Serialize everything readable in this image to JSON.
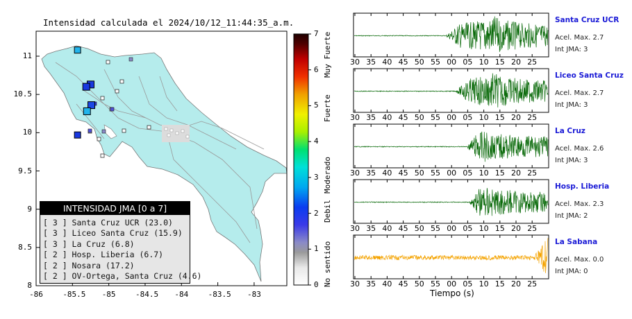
{
  "title": "Intensidad calculada el 2024/10/12_11:44:35_a.m.",
  "map": {
    "y_ticks": [
      "8",
      "8.5",
      "9",
      "9.5",
      "10",
      "10.5",
      "11"
    ],
    "x_ticks": [
      "-86",
      "-85.5",
      "-85",
      "-84.5",
      "-84",
      "-83.5",
      "-83"
    ],
    "land_color": "#b5ecec",
    "markers": [
      {
        "lon": -85.43,
        "lat": 11.08,
        "color": "#22b4ec",
        "size": 9
      },
      {
        "lon": -85.25,
        "lat": 10.63,
        "color": "#1838e0",
        "size": 10
      },
      {
        "lon": -85.31,
        "lat": 10.6,
        "color": "#1838e0",
        "size": 10
      },
      {
        "lon": -85.24,
        "lat": 10.36,
        "color": "#1c48e4",
        "size": 10
      },
      {
        "lon": -85.3,
        "lat": 10.28,
        "color": "#22b4ec",
        "size": 10
      },
      {
        "lon": -85.43,
        "lat": 9.97,
        "color": "#1838e0",
        "size": 9
      }
    ]
  },
  "legend": {
    "heading": "INTENSIDAD JMA [0 a 7]",
    "rows": [
      "[ 3 ] Santa Cruz UCR (23.0)",
      "[ 3 ] Liceo Santa Cruz (15.9)",
      "[ 3 ] La Cruz (6.8)",
      "[ 2 ] Hosp. Liberia (6.7)",
      "[ 2 ] Nosara (17.2)",
      "[ 2 ] OV-Ortega, Santa Cruz (4.6)"
    ]
  },
  "colorbar": {
    "ticks": [
      "0",
      "1",
      "2",
      "3",
      "4",
      "5",
      "6",
      "7"
    ],
    "categories": [
      "No sentido",
      "Debil",
      "Moderado",
      "Fuerte",
      "Muy Fuerte"
    ]
  },
  "seismograms": {
    "x_ticks": [
      "30",
      "35",
      "40",
      "45",
      "50",
      "55",
      "00",
      "05",
      "10",
      "15",
      "20",
      "25"
    ],
    "x_label": "Tiempo (s)",
    "stations": [
      {
        "name": "Santa Cruz UCR",
        "acel": "Acel. Max. 2.7",
        "int": "Int JMA: 3",
        "color": "#0a6a0a",
        "onset": 0.47,
        "peak": 0.72,
        "amp": 1.0
      },
      {
        "name": "Liceo Santa Cruz",
        "acel": "Acel. Max. 2.7",
        "int": "Int JMA: 3",
        "color": "#0a6a0a",
        "onset": 0.52,
        "peak": 0.72,
        "amp": 0.95
      },
      {
        "name": "La Cruz",
        "acel": "Acel. Max. 2.6",
        "int": "Int JMA: 3",
        "color": "#0a6a0a",
        "onset": 0.58,
        "peak": 0.62,
        "amp": 0.95
      },
      {
        "name": "Hosp. Liberia",
        "acel": "Acel. Max. 2.3",
        "int": "Int JMA: 2",
        "color": "#0a6a0a",
        "onset": 0.59,
        "peak": 0.64,
        "amp": 0.95
      },
      {
        "name": "La Sabana",
        "acel": "Acel. Max. 0.0",
        "int": "Int JMA: 0",
        "color": "#f4a300",
        "onset": 0.0,
        "peak": 0.99,
        "amp": 0.2
      }
    ]
  }
}
